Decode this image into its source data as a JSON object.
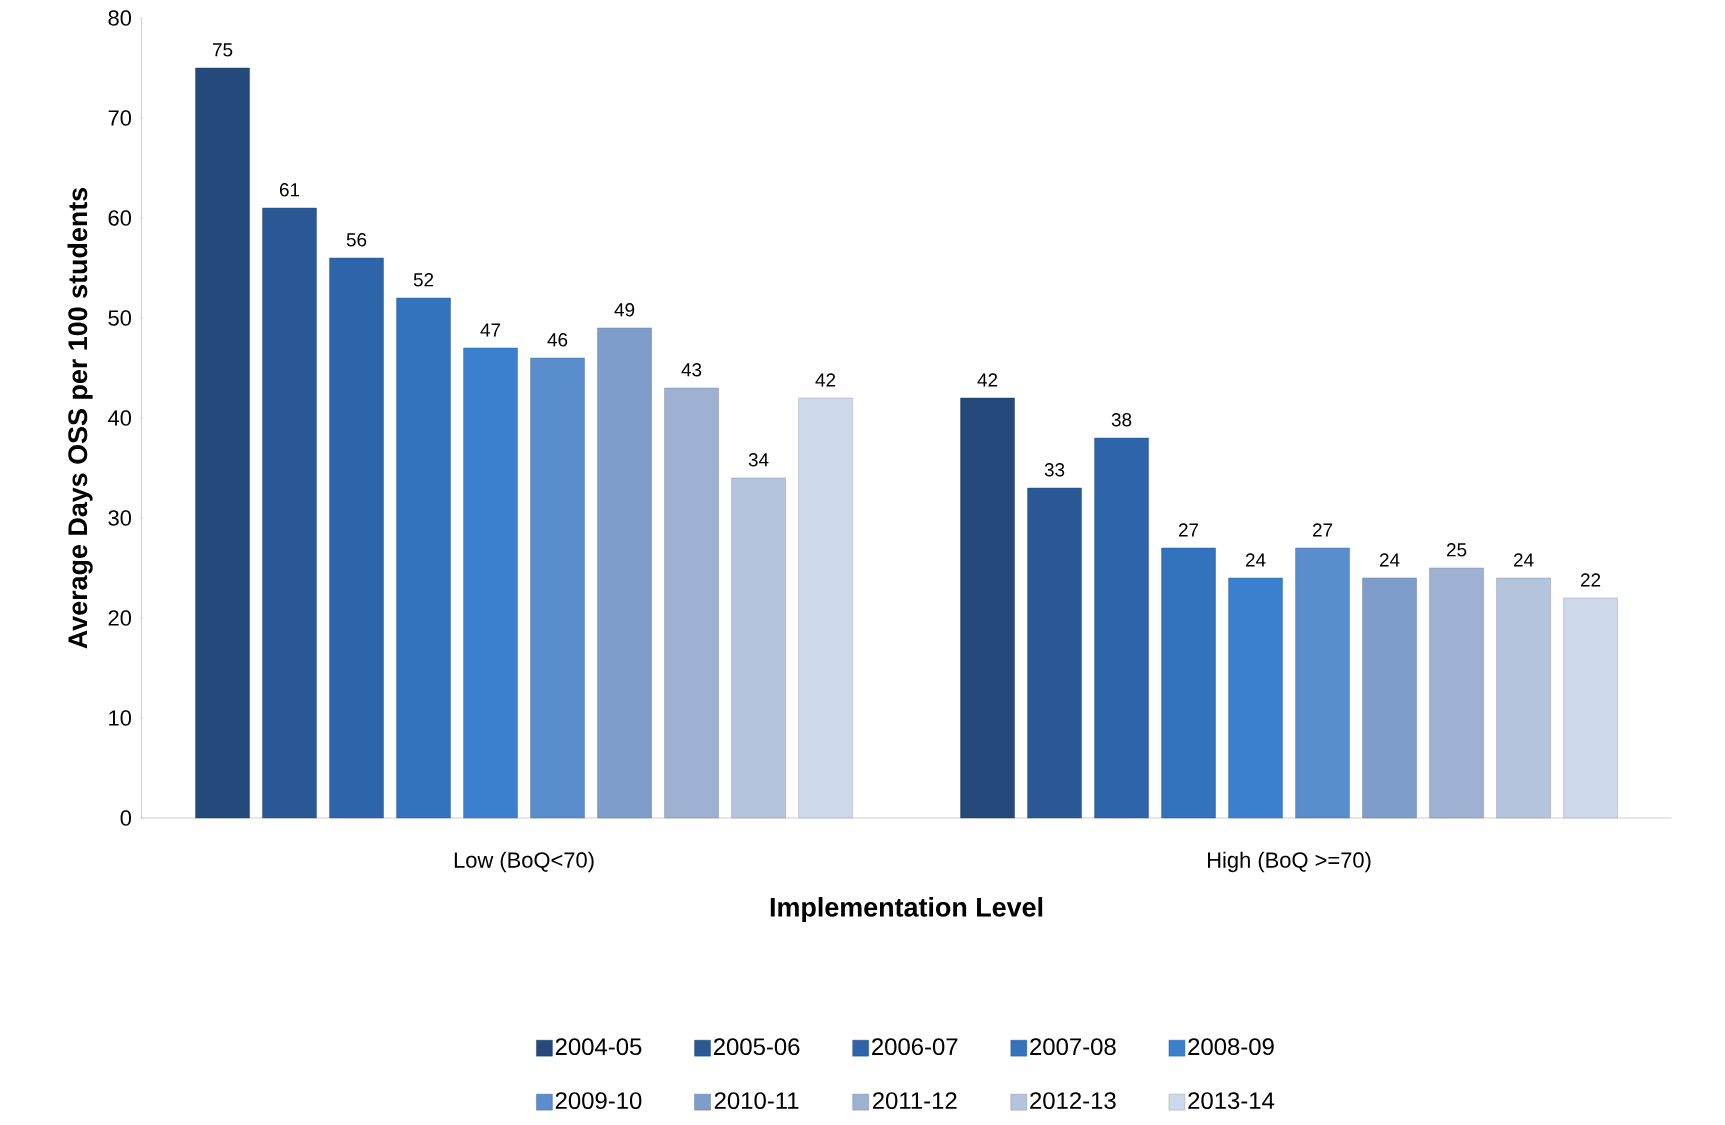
{
  "chart_data": {
    "type": "bar",
    "xlabel": "Implementation Level",
    "ylabel": "Average Days OSS  per 100 students",
    "categories": [
      "Low (BoQ<70)",
      "High (BoQ >=70)"
    ],
    "series": [
      {
        "name": "2004-05",
        "color": "#24497a",
        "values": [
          75,
          42
        ]
      },
      {
        "name": "2005-06",
        "color": "#2a5894",
        "values": [
          61,
          33
        ]
      },
      {
        "name": "2006-07",
        "color": "#2e65aa",
        "values": [
          56,
          38
        ]
      },
      {
        "name": "2007-08",
        "color": "#3372bd",
        "values": [
          52,
          27
        ]
      },
      {
        "name": "2008-09",
        "color": "#3a80cf",
        "values": [
          47,
          24
        ]
      },
      {
        "name": "2009-10",
        "color": "#5a8dcc",
        "values": [
          46,
          27
        ]
      },
      {
        "name": "2010-11",
        "color": "#7f9dcb",
        "values": [
          49,
          24
        ]
      },
      {
        "name": "2011-12",
        "color": "#9eb1d3",
        "values": [
          43,
          25
        ]
      },
      {
        "name": "2012-13",
        "color": "#b5c4dd",
        "values": [
          34,
          24
        ]
      },
      {
        "name": "2013-14",
        "color": "#cdd8ea",
        "values": [
          42,
          22
        ]
      }
    ],
    "ylim": [
      0,
      80
    ],
    "yticks": [
      0,
      10,
      20,
      30,
      40,
      50,
      60,
      70,
      80
    ],
    "data_labels": true,
    "legend": "bottom",
    "grid": false
  }
}
